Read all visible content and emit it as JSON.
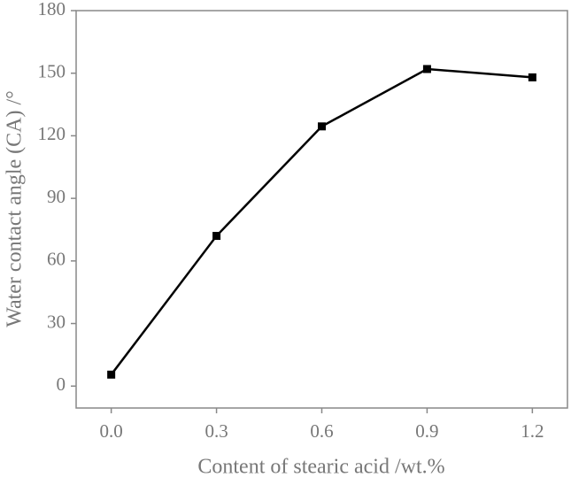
{
  "chart_data": {
    "type": "line",
    "x_label": "Content of stearic acid /wt.%",
    "y_label": "Water contact angle (CA) /°",
    "x": [
      0,
      0.3,
      0.6,
      0.9,
      1.2
    ],
    "values": [
      5.5,
      72,
      124.5,
      152,
      148
    ],
    "color": "#000000",
    "xlim": [
      -0.1,
      1.3
    ],
    "xticks": [
      {
        "value": 0,
        "label": "0.0"
      },
      0.3,
      0.6,
      0.9,
      1.2
    ],
    "ylim": [
      -10.5,
      180
    ],
    "yticks": [
      0,
      30,
      60,
      90,
      120,
      150,
      180
    ]
  }
}
